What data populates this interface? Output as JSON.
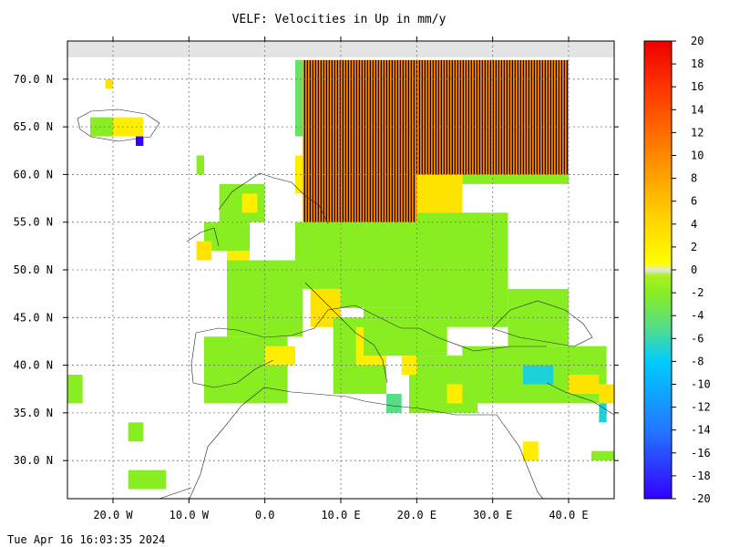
{
  "chart_data": {
    "type": "heatmap",
    "title": "VELF: Velocities in Up in mm/y",
    "xlim": [
      -26,
      46
    ],
    "ylim": [
      26,
      74
    ],
    "x_ticks": [
      {
        "value": -20,
        "label": "20.0 W"
      },
      {
        "value": -10,
        "label": "10.0 W"
      },
      {
        "value": 0,
        "label": "0.0"
      },
      {
        "value": 10,
        "label": "10.0 E"
      },
      {
        "value": 20,
        "label": "20.0 E"
      },
      {
        "value": 30,
        "label": "30.0 E"
      },
      {
        "value": 40,
        "label": "40.0 E"
      }
    ],
    "y_ticks": [
      {
        "value": 70,
        "label": "70.0 N"
      },
      {
        "value": 65,
        "label": "65.0 N"
      },
      {
        "value": 60,
        "label": "60.0 N"
      },
      {
        "value": 55,
        "label": "55.0 N"
      },
      {
        "value": 50,
        "label": "50.0 N"
      },
      {
        "value": 45,
        "label": "45.0 N"
      },
      {
        "value": 40,
        "label": "40.0 N"
      },
      {
        "value": 35,
        "label": "35.0 N"
      },
      {
        "value": 30,
        "label": "30.0 N"
      }
    ],
    "grid": true,
    "colorbar": {
      "min": -20,
      "max": 20,
      "ticks": [
        20,
        18,
        16,
        14,
        12,
        10,
        8,
        6,
        4,
        2,
        0,
        -2,
        -4,
        -6,
        -8,
        -10,
        -12,
        -14,
        -16,
        -18,
        -20
      ],
      "tick_labels": [
        "20",
        "18",
        "16",
        "14",
        "12",
        "10",
        "8",
        "6",
        "4",
        "2",
        "0",
        "-2",
        "-4",
        "-6",
        "-8",
        "-10",
        "-12",
        "-14",
        "-16",
        "-18",
        "-20"
      ],
      "stops": [
        {
          "value": -20,
          "color": "#3300ff"
        },
        {
          "value": -14,
          "color": "#2277ff"
        },
        {
          "value": -8,
          "color": "#00ccff"
        },
        {
          "value": -5,
          "color": "#55dd88"
        },
        {
          "value": -2,
          "color": "#88ee22"
        },
        {
          "value": -0.5,
          "color": "#aaf022"
        },
        {
          "value": 0,
          "color": "#e5e5e5"
        },
        {
          "value": 0.5,
          "color": "#ffff00"
        },
        {
          "value": 5,
          "color": "#ffcc00"
        },
        {
          "value": 10,
          "color": "#ff8800"
        },
        {
          "value": 16,
          "color": "#ff3300"
        },
        {
          "value": 20,
          "color": "#ee0000"
        }
      ]
    },
    "regions": [
      {
        "lon": [
          5,
          40
        ],
        "lat": [
          60,
          72
        ],
        "value": 10,
        "hatched": true
      },
      {
        "lon": [
          5,
          20
        ],
        "lat": [
          55,
          60
        ],
        "value": 10,
        "hatched": true
      },
      {
        "lon": [
          4,
          5
        ],
        "lat": [
          64,
          72
        ],
        "value": -4
      },
      {
        "lon": [
          4,
          5
        ],
        "lat": [
          58,
          62
        ],
        "value": 2
      },
      {
        "lon": [
          20,
          26
        ],
        "lat": [
          56,
          60
        ],
        "value": 3
      },
      {
        "lon": [
          26,
          40
        ],
        "lat": [
          59,
          60
        ],
        "value": -2
      },
      {
        "lon": [
          -6,
          0
        ],
        "lat": [
          55,
          59
        ],
        "value": -2
      },
      {
        "lon": [
          -3,
          -1
        ],
        "lat": [
          56,
          58
        ],
        "value": 2
      },
      {
        "lon": [
          -8,
          -2
        ],
        "lat": [
          52,
          55
        ],
        "value": -2
      },
      {
        "lon": [
          -5,
          -2
        ],
        "lat": [
          50,
          52
        ],
        "value": 2
      },
      {
        "lon": [
          -5,
          5
        ],
        "lat": [
          43,
          51
        ],
        "value": -2
      },
      {
        "lon": [
          -8,
          3
        ],
        "lat": [
          36,
          43
        ],
        "value": -2
      },
      {
        "lon": [
          0,
          4
        ],
        "lat": [
          40,
          42
        ],
        "value": 2
      },
      {
        "lon": [
          4,
          10
        ],
        "lat": [
          48,
          55
        ],
        "value": -2
      },
      {
        "lon": [
          6,
          10
        ],
        "lat": [
          44,
          48
        ],
        "value": 3
      },
      {
        "lon": [
          10,
          20
        ],
        "lat": [
          46,
          55
        ],
        "value": -2
      },
      {
        "lon": [
          9,
          16
        ],
        "lat": [
          37,
          45
        ],
        "value": -2
      },
      {
        "lon": [
          12,
          16
        ],
        "lat": [
          40,
          44
        ],
        "value": 2
      },
      {
        "lon": [
          13,
          24
        ],
        "lat": [
          41,
          46
        ],
        "value": -2
      },
      {
        "lon": [
          20,
          32
        ],
        "lat": [
          44,
          56
        ],
        "value": -2
      },
      {
        "lon": [
          19,
          28
        ],
        "lat": [
          35,
          41
        ],
        "value": -2
      },
      {
        "lon": [
          24,
          30
        ],
        "lat": [
          36,
          38
        ],
        "value": 2
      },
      {
        "lon": [
          26,
          45
        ],
        "lat": [
          36,
          42
        ],
        "value": -2
      },
      {
        "lon": [
          34,
          38
        ],
        "lat": [
          38,
          40
        ],
        "value": -7
      },
      {
        "lon": [
          40,
          44
        ],
        "lat": [
          37,
          39
        ],
        "value": 3
      },
      {
        "lon": [
          44,
          46
        ],
        "lat": [
          36,
          38
        ],
        "value": 3
      },
      {
        "lon": [
          44,
          45
        ],
        "lat": [
          34,
          36
        ],
        "value": -7
      },
      {
        "lon": [
          32,
          40
        ],
        "lat": [
          42,
          48
        ],
        "value": -2
      },
      {
        "lon": [
          -23,
          -20
        ],
        "lat": [
          64,
          66
        ],
        "value": -2
      },
      {
        "lon": [
          -20,
          -16
        ],
        "lat": [
          64,
          66
        ],
        "value": 2
      },
      {
        "lon": [
          -17,
          -16
        ],
        "lat": [
          63,
          64
        ],
        "value": -20
      },
      {
        "lon": [
          -26,
          -24
        ],
        "lat": [
          36,
          39
        ],
        "value": -2
      },
      {
        "lon": [
          -18,
          -16
        ],
        "lat": [
          32,
          34
        ],
        "value": -2
      },
      {
        "lon": [
          -18,
          -13
        ],
        "lat": [
          27,
          29
        ],
        "value": -2
      },
      {
        "lon": [
          -9,
          -8
        ],
        "lat": [
          60,
          62
        ],
        "value": -2
      },
      {
        "lon": [
          -9,
          -7
        ],
        "lat": [
          51,
          53
        ],
        "value": 3
      },
      {
        "lon": [
          -21,
          -20
        ],
        "lat": [
          69,
          70
        ],
        "value": 3
      },
      {
        "lon": [
          34,
          36
        ],
        "lat": [
          30,
          32
        ],
        "value": 2
      },
      {
        "lon": [
          43,
          46
        ],
        "lat": [
          30,
          31
        ],
        "value": -2
      },
      {
        "lon": [
          18,
          20
        ],
        "lat": [
          39,
          41
        ],
        "value": 2
      },
      {
        "lon": [
          16,
          18
        ],
        "lat": [
          35,
          37
        ],
        "value": -5
      }
    ]
  },
  "timestamp": "Tue Apr 16 16:03:35 2024"
}
